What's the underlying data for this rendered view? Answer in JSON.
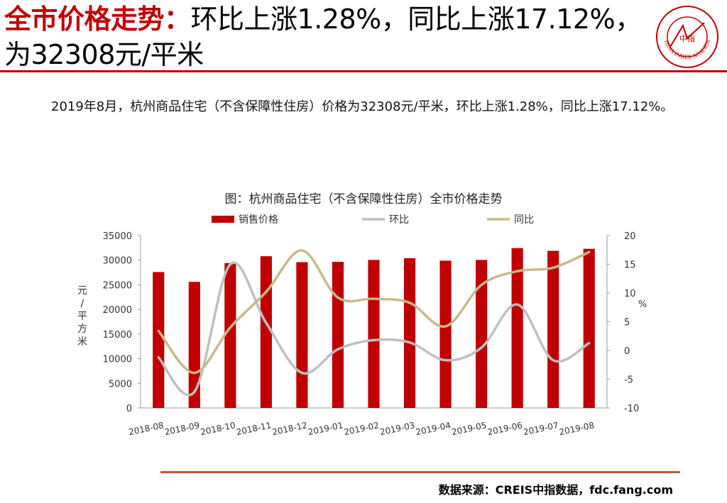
{
  "header": {
    "title_highlight": "全市价格走势：",
    "title_rest": "环比上涨1.28%，同比上涨17.12%，为32308元/平米"
  },
  "body_text": "2019年8月，杭州商品住宅（不含保障性住房）价格为32308元/平米，环比上涨1.28%，同比上涨17.12%。",
  "source": "数据来源：CREIS中指数据，fdc.fang.com",
  "logo": {
    "center_text": "中指",
    "outer_text": "CHINA INDEX ACADEMY",
    "color": "#c00000"
  },
  "colors": {
    "bar": "#c00000",
    "mom": "#bfbfbf",
    "yoy": "#c8b98a",
    "accent": "#c00000"
  },
  "chart_data": {
    "type": "bar",
    "title": "图：杭州商品住宅（不含保障性住房）全市价格走势",
    "categories": [
      "2018-08",
      "2018-09",
      "2018-10",
      "2018-11",
      "2018-12",
      "2019-01",
      "2019-02",
      "2019-03",
      "2019-04",
      "2019-05",
      "2019-06",
      "2019-07",
      "2019-08"
    ],
    "series": [
      {
        "name": "销售价格",
        "type": "bar",
        "axis": "left",
        "values": [
          27586,
          25600,
          29400,
          30800,
          29600,
          29650,
          30050,
          30400,
          29900,
          30050,
          32450,
          31900,
          32308
        ]
      },
      {
        "name": "环比",
        "type": "line",
        "axis": "right",
        "values": [
          -1.2,
          -7.2,
          15.0,
          4.8,
          -3.9,
          0.2,
          1.8,
          1.4,
          -1.7,
          0.5,
          8.0,
          -1.7,
          1.28
        ]
      },
      {
        "name": "同比",
        "type": "line",
        "axis": "right",
        "values": [
          3.4,
          -3.9,
          4.0,
          10.2,
          17.4,
          9.2,
          9.0,
          8.3,
          4.2,
          11.4,
          13.8,
          14.4,
          17.12
        ]
      }
    ],
    "ylabel_left": "元/平方米",
    "ylabel_right": "%",
    "ylim_left": [
      0,
      35000
    ],
    "yticks_left": [
      "0",
      "5000",
      "10000",
      "15000",
      "20000",
      "25000",
      "30000",
      "35000"
    ],
    "ylim_right": [
      -10,
      20
    ],
    "yticks_right": [
      "-10",
      "-5",
      "0",
      "5",
      "10",
      "15",
      "20"
    ],
    "legend_position": "top",
    "grid": false
  }
}
